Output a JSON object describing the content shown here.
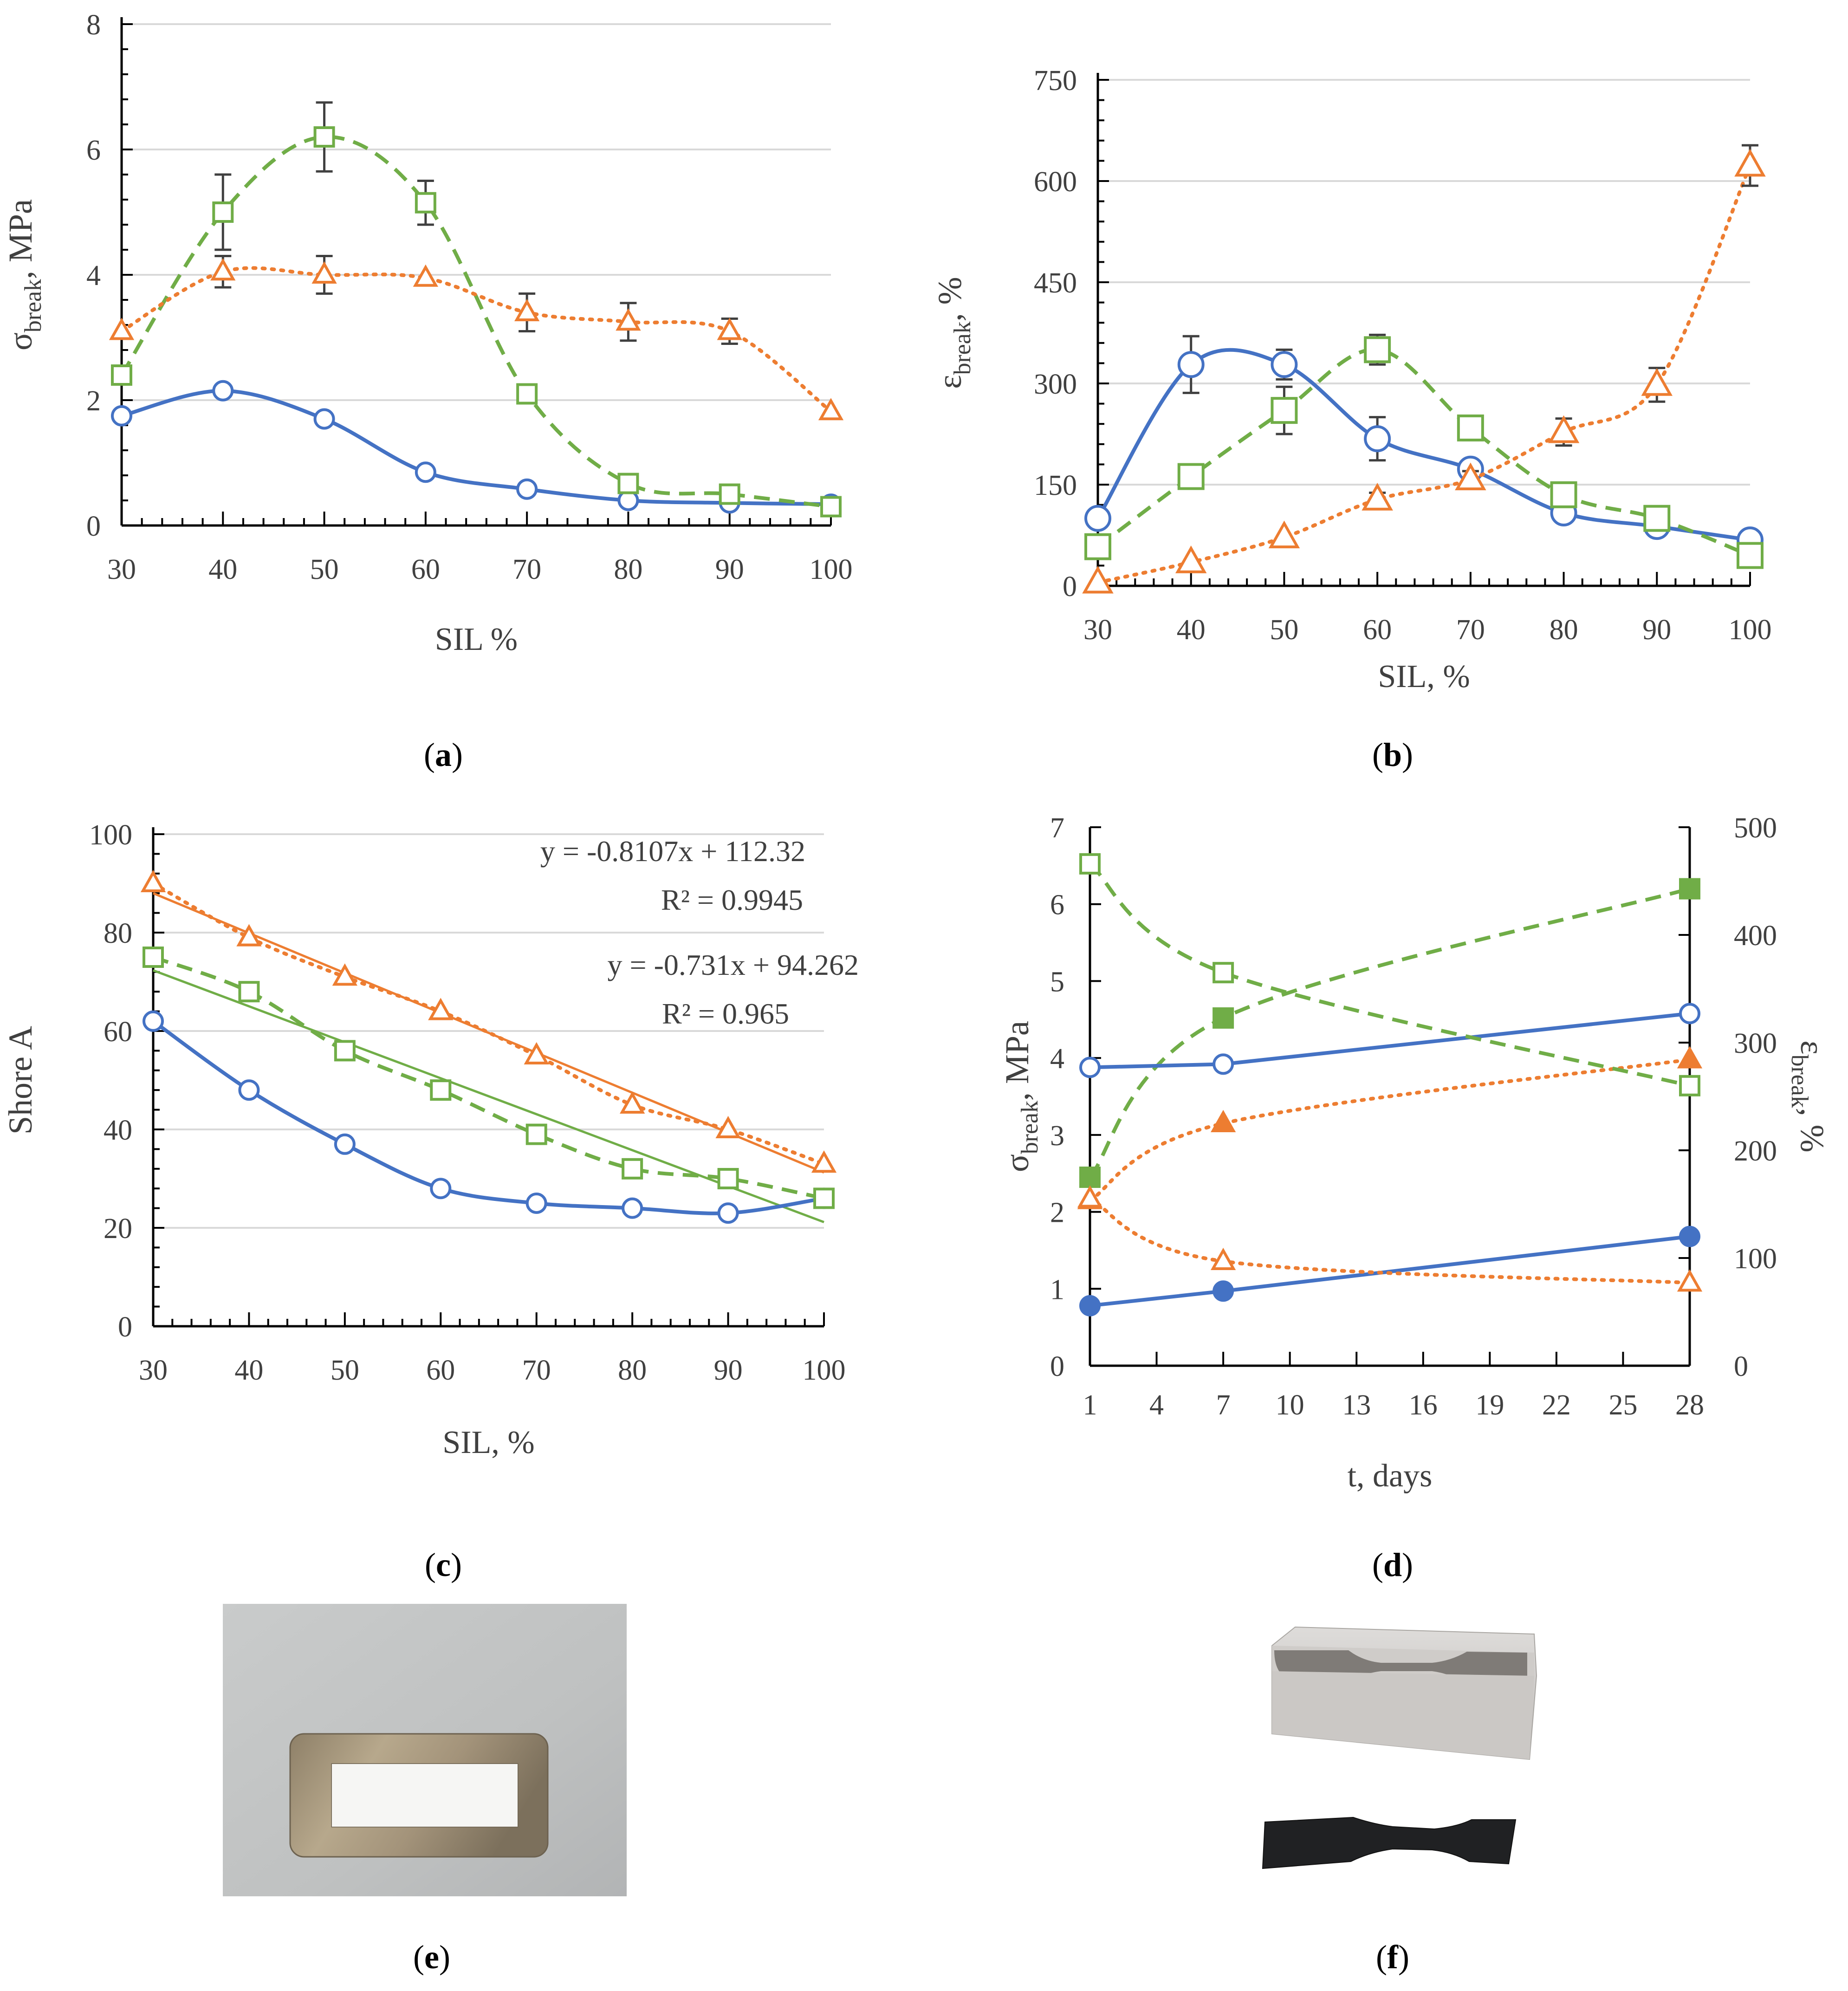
{
  "colors": {
    "blue": "#4472C4",
    "orange": "#ED7D31",
    "green": "#70AD47",
    "grid": "#D9D9D9",
    "axis": "#000000",
    "err": "#404040"
  },
  "chart_data": [
    {
      "id": "a",
      "type": "line",
      "panel_label": "a",
      "xlabel": "SIL %",
      "ylabel_main": "σ",
      "ylabel_sub": "break",
      "ylabel_tail": ", MPa",
      "x": [
        30,
        40,
        50,
        60,
        70,
        80,
        90,
        100
      ],
      "xticks": [
        30,
        40,
        50,
        60,
        70,
        80,
        90,
        100
      ],
      "yticks": [
        0,
        2,
        4,
        6,
        8
      ],
      "ylim": [
        0,
        8
      ],
      "xlim": [
        30,
        100
      ],
      "grid": true,
      "series": [
        {
          "name": "circle",
          "color": "blue",
          "marker": "circle",
          "dash": "solid",
          "values": [
            1.75,
            2.15,
            1.7,
            0.85,
            0.58,
            0.4,
            0.36,
            0.34
          ],
          "err": [
            0,
            0,
            0,
            0,
            0,
            0,
            0,
            0
          ]
        },
        {
          "name": "square",
          "color": "green",
          "marker": "square",
          "dash": "dashed",
          "values": [
            2.4,
            5.0,
            6.2,
            5.15,
            2.1,
            0.67,
            0.5,
            0.3
          ],
          "err": [
            0,
            0.6,
            0.55,
            0.35,
            0,
            0,
            0,
            0
          ]
        },
        {
          "name": "triangle",
          "color": "orange",
          "marker": "triangle",
          "dash": "dotted",
          "values": [
            3.1,
            4.05,
            4.0,
            3.95,
            3.4,
            3.25,
            3.1,
            1.82
          ],
          "err": [
            0,
            0.25,
            0.3,
            0,
            0.3,
            0.3,
            0.2,
            0
          ]
        }
      ]
    },
    {
      "id": "b",
      "type": "line",
      "panel_label": "b",
      "xlabel": "SIL, %",
      "ylabel_main": "ε",
      "ylabel_sub": "break",
      "ylabel_tail": ", %",
      "x": [
        30,
        40,
        50,
        60,
        70,
        80,
        90,
        100
      ],
      "xticks": [
        30,
        40,
        50,
        60,
        70,
        80,
        90,
        100
      ],
      "yticks": [
        0,
        150,
        300,
        450,
        600,
        750
      ],
      "ylim": [
        0,
        750
      ],
      "xlim": [
        30,
        100
      ],
      "grid": true,
      "series": [
        {
          "name": "circle",
          "color": "blue",
          "marker": "circle",
          "dash": "solid",
          "values": [
            100,
            328,
            328,
            218,
            173,
            108,
            88,
            68
          ],
          "err": [
            0,
            42,
            22,
            32,
            0,
            0,
            0,
            0
          ]
        },
        {
          "name": "square",
          "color": "green",
          "marker": "square",
          "dash": "dashed",
          "values": [
            58,
            162,
            260,
            350,
            234,
            135,
            100,
            45
          ],
          "err": [
            0,
            0,
            35,
            22,
            18,
            15,
            12,
            0
          ]
        },
        {
          "name": "triangle",
          "color": "orange",
          "marker": "triangle",
          "dash": "dotted",
          "values": [
            5,
            35,
            72,
            128,
            158,
            228,
            298,
            623
          ],
          "err": [
            0,
            0,
            0,
            10,
            12,
            20,
            25,
            30
          ]
        }
      ]
    },
    {
      "id": "c",
      "type": "line",
      "panel_label": "c",
      "xlabel": "SIL, %",
      "ylabel": "Shore A",
      "x": [
        30,
        40,
        50,
        60,
        70,
        80,
        90,
        100
      ],
      "xticks": [
        30,
        40,
        50,
        60,
        70,
        80,
        90,
        100
      ],
      "yticks": [
        0,
        20,
        40,
        60,
        80,
        100
      ],
      "ylim": [
        0,
        100
      ],
      "xlim": [
        30,
        100
      ],
      "grid": true,
      "series": [
        {
          "name": "circle",
          "color": "blue",
          "marker": "circle",
          "dash": "solid",
          "values": [
            62,
            48,
            37,
            28,
            25,
            24,
            23,
            26
          ]
        },
        {
          "name": "square",
          "color": "green",
          "marker": "square",
          "dash": "dashed",
          "values": [
            75,
            68,
            56,
            48,
            39,
            32,
            30,
            26
          ]
        },
        {
          "name": "triangle",
          "color": "orange",
          "marker": "triangle",
          "dash": "dotted",
          "values": [
            90,
            79,
            71,
            64,
            55,
            45,
            40,
            33
          ]
        }
      ],
      "trendlines": [
        {
          "color": "orange",
          "slope": -0.8107,
          "intercept": 112.32,
          "equation": "y = -0.8107x + 112.32",
          "r2": "R² = 0.9945"
        },
        {
          "color": "green",
          "slope": -0.731,
          "intercept": 94.262,
          "equation": "y = -0.731x + 94.262",
          "r2": "R² = 0.965"
        }
      ]
    },
    {
      "id": "d",
      "type": "line",
      "panel_label": "d",
      "xlabel": "t, days",
      "ylabel_left_main": "σ",
      "ylabel_left_sub": "break",
      "ylabel_left_tail": ", MPa",
      "ylabel_right_main": "ε",
      "ylabel_right_sub": "break",
      "ylabel_right_tail": ", %",
      "x": [
        1,
        7,
        28
      ],
      "xticks": [
        1,
        4,
        7,
        10,
        13,
        16,
        19,
        22,
        25,
        28
      ],
      "xlim": [
        1,
        28
      ],
      "yticks_left": [
        0,
        1,
        2,
        3,
        4,
        5,
        6,
        7
      ],
      "ylim_left": [
        0,
        7
      ],
      "yticks_right": [
        0,
        100,
        200,
        300,
        400,
        500
      ],
      "ylim_right": [
        0,
        500
      ],
      "series": [
        {
          "name": "blue-filled",
          "axis": "left",
          "color": "blue",
          "marker": "circle",
          "filled": true,
          "dash": "solid",
          "values": [
            0.78,
            0.97,
            1.68
          ]
        },
        {
          "name": "orange-filled",
          "axis": "left",
          "color": "orange",
          "marker": "triangle",
          "filled": true,
          "dash": "dotted",
          "values": [
            2.15,
            3.15,
            3.98
          ]
        },
        {
          "name": "green-filled",
          "axis": "left",
          "color": "green",
          "marker": "square",
          "filled": true,
          "dash": "dashed",
          "values": [
            2.45,
            4.52,
            6.2
          ]
        },
        {
          "name": "blue-open",
          "axis": "right",
          "color": "blue",
          "marker": "circle",
          "filled": false,
          "dash": "solid",
          "values": [
            277,
            280,
            327
          ]
        },
        {
          "name": "orange-open",
          "axis": "right",
          "color": "orange",
          "marker": "triangle",
          "filled": false,
          "dash": "dotted",
          "values": [
            155,
            97,
            77
          ]
        },
        {
          "name": "green-open",
          "axis": "right",
          "color": "green",
          "marker": "square",
          "filled": false,
          "dash": "dashed",
          "values": [
            466,
            365,
            260
          ]
        }
      ]
    }
  ],
  "photos": {
    "e": {
      "panel_label": "e"
    },
    "f": {
      "panel_label": "f"
    }
  }
}
